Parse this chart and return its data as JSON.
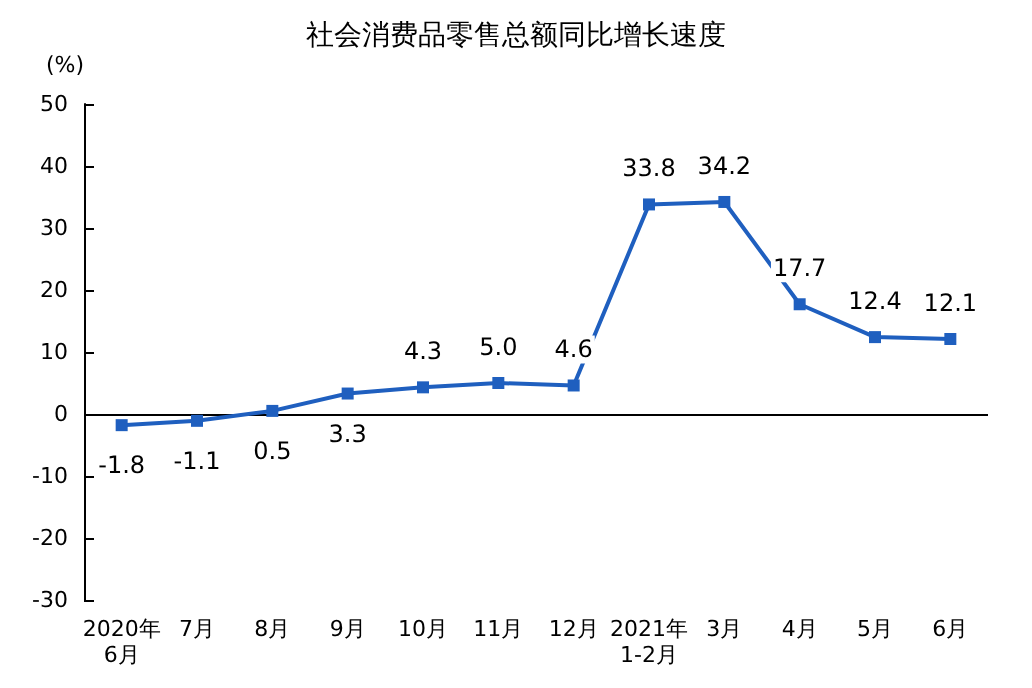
{
  "chart_data": {
    "type": "line",
    "title": "社会消费品零售总额同比增长速度",
    "ylabel": "(%)",
    "categories": [
      "2020年\n6月",
      "7月",
      "8月",
      "9月",
      "10月",
      "11月",
      "12月",
      "2021年\n1-2月",
      "3月",
      "4月",
      "5月",
      "6月"
    ],
    "series": [
      {
        "color": "#1f5fbf",
        "values": [
          -1.8,
          -1.1,
          0.5,
          3.3,
          4.3,
          5.0,
          4.6,
          33.8,
          34.2,
          17.7,
          12.4,
          12.1
        ],
        "value_labels": [
          "-1.8",
          "-1.1",
          "0.5",
          "3.3",
          "4.3",
          "5.0",
          "4.6",
          "33.8",
          "34.2",
          "17.7",
          "12.4",
          "12.1"
        ]
      }
    ],
    "ylim": [
      -30,
      50
    ],
    "yticks": [
      -30,
      -20,
      -10,
      0,
      10,
      20,
      30,
      40,
      50
    ],
    "ref_lines": [
      {
        "axis": "y",
        "value": 0,
        "color": "#000000",
        "line_style": "solid"
      }
    ],
    "marker": "square",
    "line_style": "solid"
  }
}
